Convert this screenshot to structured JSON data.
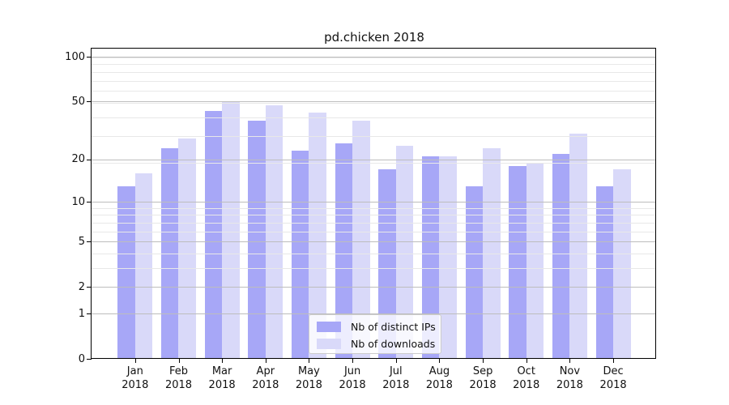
{
  "title": "pd.chicken 2018",
  "chart_data": {
    "type": "bar",
    "title": "pd.chicken 2018",
    "categories": [
      "Jan",
      "Feb",
      "Mar",
      "Apr",
      "May",
      "Jun",
      "Jul",
      "Aug",
      "Sep",
      "Oct",
      "Nov",
      "Dec"
    ],
    "year_label": "2018",
    "series": [
      {
        "name": "Nb of distinct IPs",
        "color": "#a7a7f7",
        "values": [
          13,
          24,
          43,
          37,
          23,
          26,
          17,
          21,
          13,
          18,
          22,
          13
        ]
      },
      {
        "name": "Nb of downloads",
        "color": "#d9d9f9",
        "values": [
          16,
          28,
          50,
          47,
          42,
          37,
          25,
          21,
          24,
          19,
          30,
          17
        ]
      }
    ],
    "xlabel": "",
    "ylabel": "",
    "yscale": "log1p",
    "yticks": [
      0,
      1,
      2,
      5,
      10,
      20,
      50,
      100
    ],
    "ylim": [
      0,
      113
    ],
    "minor_gridlines_1plusv": [
      4,
      5,
      7,
      8,
      9,
      10,
      20,
      30,
      40,
      50,
      60,
      70,
      80,
      90,
      100
    ],
    "grid": "horizontal, drawn above bars",
    "legend_position": "lower center"
  }
}
